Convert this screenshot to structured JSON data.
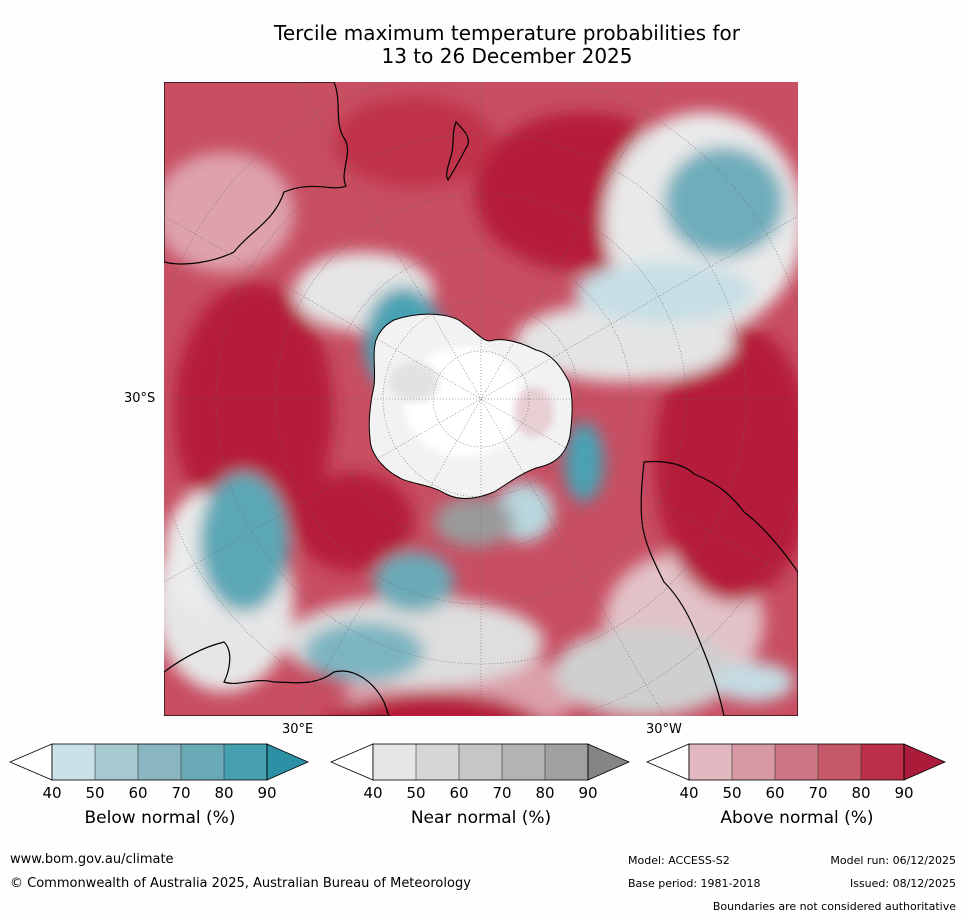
{
  "title": {
    "line1": "Tercile maximum temperature probabilities for",
    "line2": "13 to 26 December 2025"
  },
  "map": {
    "projection": "south-polar-stereographic",
    "lat_label": "30°S",
    "lon_label_east": "30°E",
    "lon_label_west": "30°W",
    "colors": {
      "below": "#3a9bb0",
      "near": "#b8b8b8",
      "above": "#b31c3a",
      "antarctica": "#ffffff",
      "land_outline": "#000000"
    }
  },
  "legends": [
    {
      "name": "Below normal (%)",
      "ticks": [
        "40",
        "50",
        "60",
        "70",
        "80",
        "90"
      ],
      "colors": [
        "#ffffff",
        "#c9e1e7",
        "#a6c8cf",
        "#8ab6c1",
        "#6aaab7",
        "#459faf",
        "#2c91a5"
      ]
    },
    {
      "name": "Near normal (%)",
      "ticks": [
        "40",
        "50",
        "60",
        "70",
        "80",
        "90"
      ],
      "colors": [
        "#ffffff",
        "#e6e6e6",
        "#d6d6d6",
        "#c6c6c6",
        "#b3b3b3",
        "#a0a0a0",
        "#858585"
      ]
    },
    {
      "name": "Above normal (%)",
      "ticks": [
        "40",
        "50",
        "60",
        "70",
        "80",
        "90"
      ],
      "colors": [
        "#ffffff",
        "#e1b8bf",
        "#d79aa5",
        "#cd7683",
        "#c55969",
        "#bb3048",
        "#aa1c3a"
      ]
    }
  ],
  "footer": {
    "website": "www.bom.gov.au/climate",
    "copyright": "© Commonwealth of Australia 2025, Australian Bureau of Meteorology",
    "model": "Model: ACCESS-S2",
    "base_period": "Base period: 1981-2018",
    "model_run": "Model run: 06/12/2025",
    "issued": "Issued: 08/12/2025",
    "disclaimer": "Boundaries are not considered authoritative"
  }
}
